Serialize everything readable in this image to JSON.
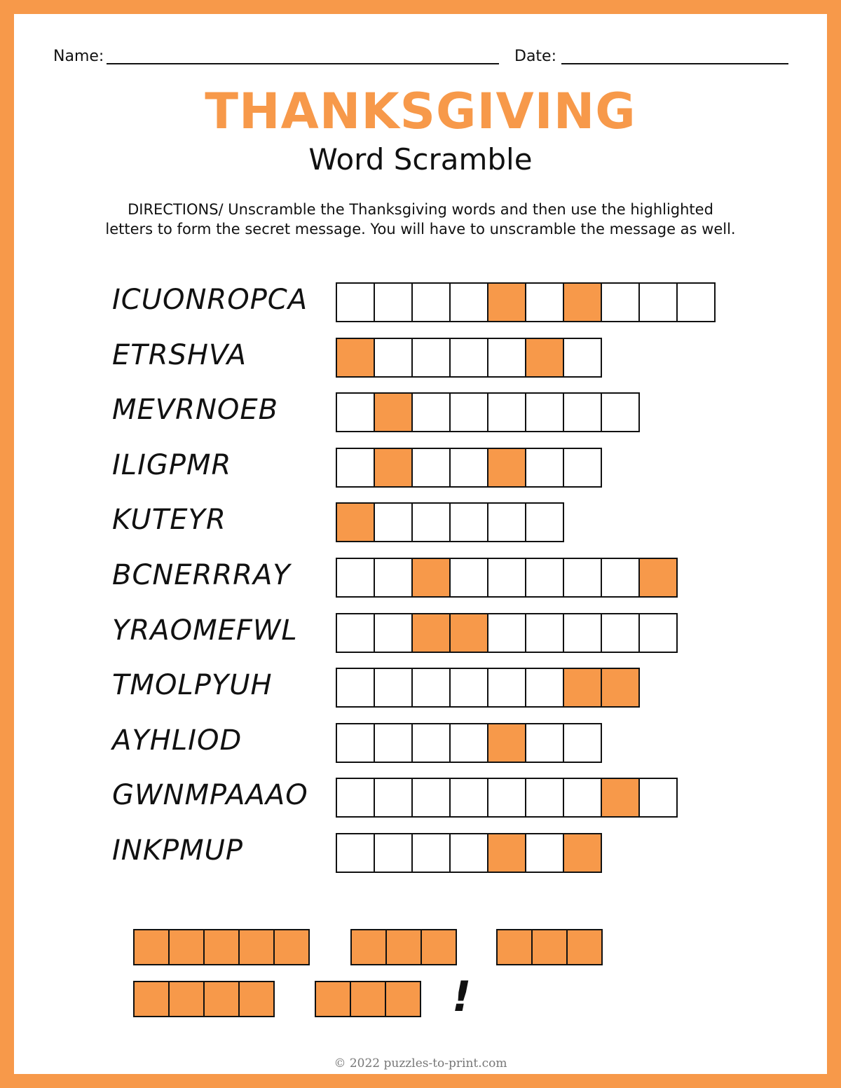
{
  "header": {
    "name_label": "Name:",
    "date_label": "Date:"
  },
  "title": "THANKSGIVING",
  "subtitle": "Word Scramble",
  "directions": [
    "DIRECTIONS/ Unscramble  the  Thanksgiving words and then use the highlighted",
    "letters to form the secret message.  You will have to unscramble the message as well."
  ],
  "colors": {
    "accent": "#f7994a",
    "ink": "#111111"
  },
  "puzzles": [
    {
      "word": "ICUONROPCA",
      "boxes": 10,
      "highlighted": [
        5,
        7
      ]
    },
    {
      "word": "ETRSHVA",
      "boxes": 7,
      "highlighted": [
        1,
        6
      ]
    },
    {
      "word": "MEVRNOEB",
      "boxes": 8,
      "highlighted": [
        2
      ]
    },
    {
      "word": "ILIGPMR",
      "boxes": 7,
      "highlighted": [
        2,
        5
      ]
    },
    {
      "word": "KUTEYR",
      "boxes": 6,
      "highlighted": [
        1
      ]
    },
    {
      "word": "BCNERRRAY",
      "boxes": 9,
      "highlighted": [
        3,
        9
      ]
    },
    {
      "word": "YRAOMEFWL",
      "boxes": 9,
      "highlighted": [
        3,
        4
      ]
    },
    {
      "word": "TMOLPYUH",
      "boxes": 8,
      "highlighted": [
        7,
        8
      ]
    },
    {
      "word": "AYHLIOD",
      "boxes": 7,
      "highlighted": [
        5
      ]
    },
    {
      "word": "GWNMPAAAO",
      "boxes": 9,
      "highlighted": [
        8
      ]
    },
    {
      "word": "INKPMUP",
      "boxes": 7,
      "highlighted": [
        5,
        7
      ]
    }
  ],
  "secret_message": {
    "lines": [
      [
        5,
        3,
        3
      ],
      [
        4,
        3
      ]
    ],
    "ending": "!"
  },
  "footer": "© 2022 puzzles-to-print.com"
}
